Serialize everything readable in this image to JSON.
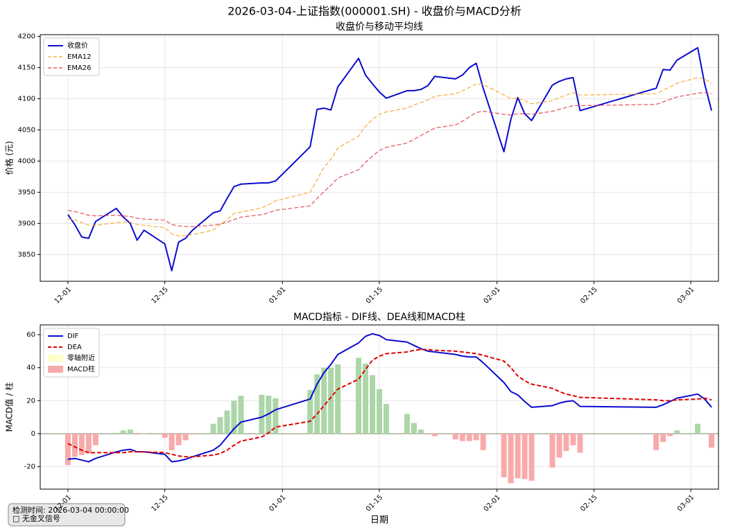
{
  "title": "2026-03-04-上证指数(000001.SH) - 收盘价与MACD分析",
  "annotation": {
    "time_text": "检测时间: 2026-03-04 00:00:00",
    "signal_text": "□ 无金叉信号"
  },
  "chart_data": [
    {
      "type": "line",
      "title": "收盘价与移动平均线",
      "ylabel": "价格 (元)",
      "x": [
        "12-01",
        "12-02",
        "12-03",
        "12-04",
        "12-05",
        "12-08",
        "12-09",
        "12-10",
        "12-11",
        "12-12",
        "12-15",
        "12-16",
        "12-17",
        "12-18",
        "12-19",
        "12-22",
        "12-23",
        "12-24",
        "12-25",
        "12-26",
        "12-29",
        "12-30",
        "12-31",
        "01-05",
        "01-06",
        "01-07",
        "01-08",
        "01-09",
        "01-12",
        "01-13",
        "01-14",
        "01-15",
        "01-16",
        "01-19",
        "01-20",
        "01-21",
        "01-22",
        "01-23",
        "01-26",
        "01-27",
        "01-28",
        "01-29",
        "01-30",
        "02-02",
        "02-03",
        "02-04",
        "02-05",
        "02-06",
        "02-09",
        "02-10",
        "02-11",
        "02-12",
        "02-13",
        "02-24",
        "02-25",
        "02-26",
        "02-27",
        "03-02",
        "03-03",
        "03-04"
      ],
      "series": [
        {
          "name": "收盘价",
          "color": "#0a0ad0",
          "style": "solid",
          "width": 2,
          "values": [
            3914,
            3898,
            3878,
            3876,
            3903,
            3924,
            3910,
            3900,
            3873,
            3889,
            3867,
            3824,
            3870,
            3876,
            3889,
            3917,
            3920,
            3940,
            3959,
            3963,
            3965,
            3965,
            3968,
            4023,
            4083,
            4085,
            4082,
            4119,
            4165,
            4138,
            4124,
            4111,
            4101,
            4113,
            4113,
            4115,
            4121,
            4136,
            4132,
            4138,
            4150,
            4157,
            4117,
            4015,
            4067,
            4102,
            4076,
            4065,
            4122,
            4128,
            4132,
            4134,
            4081,
            4117,
            4147,
            4146,
            4162,
            4182,
            4124,
            4081
          ]
        },
        {
          "name": "EMA12",
          "color": "#f5a623",
          "style": "dashed",
          "width": 1.3,
          "values": [
            3907,
            3906,
            3901,
            3897,
            3897,
            3901,
            3902,
            3902,
            3898,
            3897,
            3893,
            3883,
            3880,
            3880,
            3882,
            3889,
            3898,
            3906,
            3916,
            3918,
            3925,
            3930,
            3936,
            3950,
            3970,
            3990,
            4003,
            4021,
            4040,
            4056,
            4067,
            4075,
            4079,
            4085,
            4090,
            4094,
            4098,
            4104,
            4108,
            4113,
            4118,
            4124,
            4123,
            4106,
            4100,
            4101,
            4097,
            4092,
            4097,
            4102,
            4106,
            4110,
            4106,
            4108,
            4114,
            4119,
            4125,
            4134,
            4132,
            4125
          ]
        },
        {
          "name": "EMA26",
          "color": "#e0404c",
          "style": "dashed",
          "width": 1.3,
          "values": [
            3921,
            3919,
            3916,
            3913,
            3912,
            3913,
            3912,
            3911,
            3908,
            3907,
            3905,
            3898,
            3896,
            3895,
            3895,
            3897,
            3899,
            3902,
            3906,
            3910,
            3914,
            3917,
            3921,
            3928,
            3940,
            3951,
            3961,
            3973,
            3986,
            3998,
            4008,
            4017,
            4022,
            4029,
            4035,
            4041,
            4047,
            4053,
            4058,
            4064,
            4071,
            4078,
            4080,
            4075,
            4074,
            4076,
            4076,
            4075,
            4080,
            4083,
            4086,
            4089,
            4089,
            4091,
            4095,
            4099,
            4103,
            4109,
            4110,
            4108
          ]
        }
      ],
      "xlim": [
        "11-27",
        "03-05"
      ],
      "xticks": [
        "12-01",
        "12-15",
        "01-01",
        "01-15",
        "02-01",
        "02-15",
        "03-01"
      ],
      "ylim": [
        3807,
        4203
      ],
      "yticks": [
        3850,
        3900,
        3950,
        4000,
        4050,
        4100,
        4150,
        4200
      ],
      "grid": true,
      "legend": "upper left"
    },
    {
      "type": "combo",
      "title": "MACD指标 - DIF线、DEA线和MACD柱",
      "ylabel": "MACD值 / 柱",
      "xlabel": "日期",
      "x": [
        "12-01",
        "12-02",
        "12-03",
        "12-04",
        "12-05",
        "12-08",
        "12-09",
        "12-10",
        "12-11",
        "12-12",
        "12-15",
        "12-16",
        "12-17",
        "12-18",
        "12-19",
        "12-22",
        "12-23",
        "12-24",
        "12-25",
        "12-26",
        "12-29",
        "12-30",
        "12-31",
        "01-05",
        "01-06",
        "01-07",
        "01-08",
        "01-09",
        "01-12",
        "01-13",
        "01-14",
        "01-15",
        "01-16",
        "01-19",
        "01-20",
        "01-21",
        "01-22",
        "01-23",
        "01-26",
        "01-27",
        "01-28",
        "01-29",
        "01-30",
        "02-02",
        "02-03",
        "02-04",
        "02-05",
        "02-06",
        "02-09",
        "02-10",
        "02-11",
        "02-12",
        "02-13",
        "02-24",
        "02-25",
        "02-26",
        "02-27",
        "03-02",
        "03-03",
        "03-04"
      ],
      "series": [
        {
          "name": "DIF",
          "type": "line",
          "color": "#0a0ad0",
          "style": "solid",
          "width": 2,
          "values": [
            -15.5,
            -15,
            -16,
            -17,
            -15,
            -11,
            -10,
            -9.5,
            -11,
            -11,
            -12.5,
            -17,
            -16.5,
            -15.5,
            -14,
            -10,
            -7,
            -2,
            3,
            7,
            10,
            12,
            14.5,
            21,
            30,
            37,
            42,
            48,
            55,
            59,
            60.5,
            59.5,
            57,
            55.5,
            53.5,
            51.5,
            50,
            49.5,
            48,
            47,
            46.5,
            46.5,
            43,
            31,
            25.5,
            23.5,
            19.5,
            16,
            17,
            18.5,
            19.5,
            20,
            16.5,
            16,
            17.5,
            19.5,
            21.5,
            24,
            21,
            16
          ]
        },
        {
          "name": "DEA",
          "type": "line",
          "color": "#e00000",
          "style": "dashed",
          "width": 2,
          "values": [
            -6,
            -8,
            -10,
            -11.5,
            -11.5,
            -11.5,
            -11.5,
            -11,
            -11,
            -11,
            -11.5,
            -12.5,
            -13.5,
            -14,
            -14,
            -13,
            -12,
            -10,
            -7,
            -4.5,
            -2,
            0.5,
            4,
            7.5,
            12,
            17,
            22,
            27,
            33,
            39,
            44.5,
            47,
            48.5,
            49.5,
            50.5,
            51,
            51,
            50.5,
            50,
            49.5,
            49,
            48.5,
            47.5,
            44,
            40,
            35,
            32,
            30,
            27.5,
            25.5,
            24,
            23,
            22,
            20.5,
            20,
            20,
            20.5,
            21,
            21.5,
            20.5
          ]
        },
        {
          "name": "MACD柱",
          "type": "bar",
          "color": "#f8aaaa",
          "up_color": "#acd6a8",
          "values": [
            -19,
            -14,
            -13,
            -12,
            -7,
            0.5,
            2,
            2.5,
            -0.5,
            -0.3,
            -2.5,
            -10,
            -7,
            -4,
            -0.5,
            6,
            10,
            14,
            20,
            23,
            23.5,
            23,
            21.5,
            26.5,
            36,
            40,
            40,
            42,
            46,
            42.5,
            35.5,
            27,
            18,
            12,
            6.5,
            2.5,
            -0.5,
            -1.5,
            -3.5,
            -4.5,
            -4.5,
            -4,
            -10,
            -26.5,
            -30,
            -27,
            -27.5,
            -28.5,
            -20.5,
            -14.5,
            -10.5,
            -7,
            -11.5,
            -10,
            -5,
            -1.5,
            2,
            6,
            0.5,
            -8.5
          ]
        }
      ],
      "zero_band": {
        "name": "零轴附近",
        "color": "#ffffc8"
      },
      "zero_line_color": "#7f8060",
      "xlim": [
        "11-27",
        "03-05"
      ],
      "xticks": [
        "12-01",
        "12-15",
        "01-01",
        "01-15",
        "02-01",
        "02-15",
        "03-01"
      ],
      "ylim": [
        -33.6,
        65.9
      ],
      "yticks": [
        -20,
        0,
        20,
        40,
        60
      ],
      "grid": true,
      "legend": "upper left"
    }
  ]
}
